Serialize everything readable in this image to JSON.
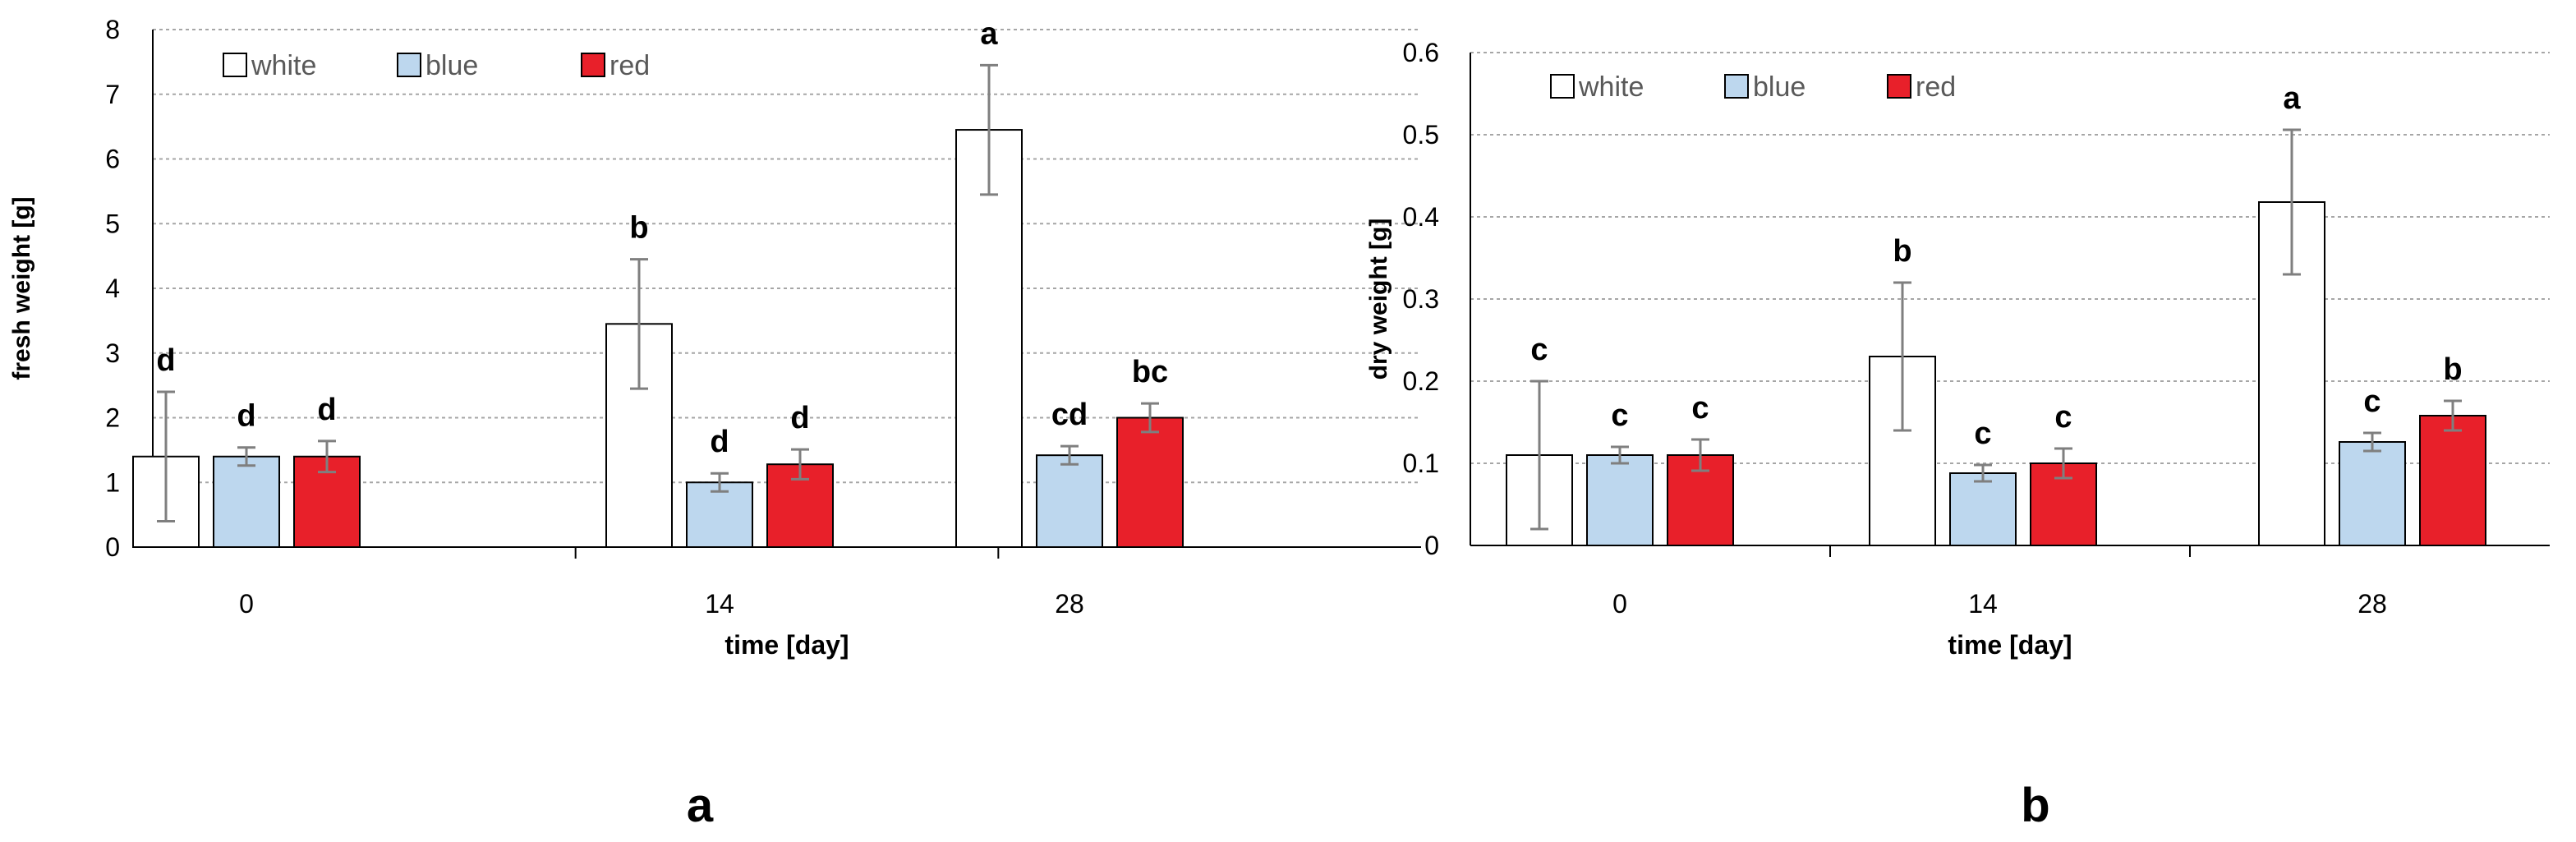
{
  "chart_data": [
    {
      "type": "bar",
      "panel_label": "a",
      "title": "",
      "xlabel": "time [day]",
      "ylabel": "fresh weight [g]",
      "ylim": [
        0,
        8
      ],
      "yticks": [
        "0",
        "1",
        "2",
        "3",
        "4",
        "5",
        "6",
        "7",
        "8"
      ],
      "grid": true,
      "legend": "top-left",
      "categories": [
        "0",
        "14",
        "28"
      ],
      "series": [
        {
          "name": "white",
          "values": [
            1.4,
            3.45,
            6.45
          ],
          "errors": [
            1.0,
            1.0,
            1.0
          ],
          "letters": [
            "d",
            "b",
            "a"
          ]
        },
        {
          "name": "blue",
          "values": [
            1.4,
            1.0,
            1.42
          ],
          "errors": [
            0.14,
            0.14,
            0.14
          ],
          "letters": [
            "d",
            "d",
            "cd"
          ]
        },
        {
          "name": "red",
          "values": [
            1.4,
            1.28,
            2.0
          ],
          "errors": [
            0.24,
            0.23,
            0.22
          ],
          "letters": [
            "d",
            "d",
            "bc"
          ]
        }
      ]
    },
    {
      "type": "bar",
      "panel_label": "b",
      "title": "",
      "xlabel": "time [day]",
      "ylabel": "dry weight [g]",
      "ylim": [
        0,
        0.6
      ],
      "yticks": [
        "0",
        "0.1",
        "0.2",
        "0.3",
        "0.4",
        "0.5",
        "0.6"
      ],
      "grid": true,
      "legend": "top-left",
      "categories": [
        "0",
        "14",
        "28"
      ],
      "series": [
        {
          "name": "white",
          "values": [
            0.11,
            0.23,
            0.418
          ],
          "errors": [
            0.09,
            0.09,
            0.088
          ],
          "letters": [
            "c",
            "b",
            "a"
          ]
        },
        {
          "name": "blue",
          "values": [
            0.11,
            0.088,
            0.126
          ],
          "errors": [
            0.01,
            0.01,
            0.011
          ],
          "letters": [
            "c",
            "c",
            "c"
          ]
        },
        {
          "name": "red",
          "values": [
            0.11,
            0.1,
            0.158
          ],
          "errors": [
            0.019,
            0.018,
            0.018
          ],
          "letters": [
            "c",
            "c",
            "b"
          ]
        }
      ]
    }
  ],
  "colors": {
    "white": "#ffffff",
    "blue": "#bdd7ee",
    "red": "#e8202a",
    "bar_stroke": "#000000",
    "error_bar": "#7f7f7f",
    "grid": "#a6a6a6",
    "axis": "#000000",
    "text": "#000000",
    "legend_text": "#595959"
  }
}
